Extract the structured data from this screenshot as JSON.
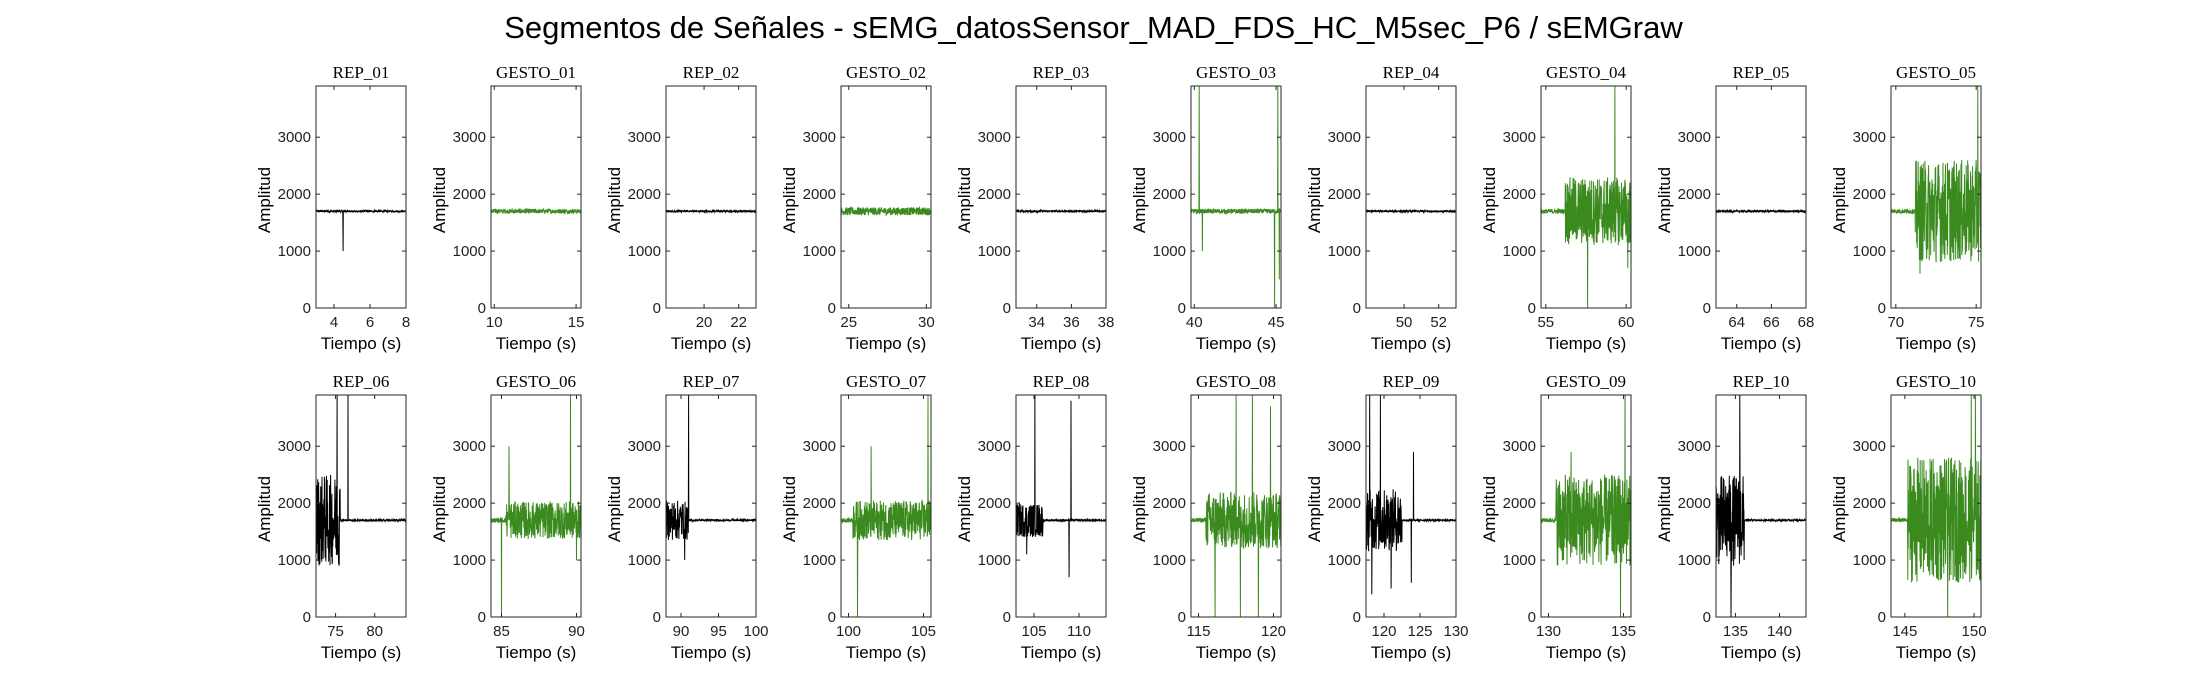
{
  "title": "Segmentos de Señales - sEMG_datosSensor_MAD_FDS_HC_M5sec_P6 / sEMGraw",
  "colors": {
    "rep": "#000000",
    "gesto": "#3a8a1e"
  },
  "chart_data": [
    {
      "type": "line",
      "title": "REP_01",
      "xlabel": "Tiempo (s)",
      "ylabel": "Amplitud",
      "xlim": [
        3,
        8
      ],
      "ylim": [
        0,
        3900
      ],
      "xticks": [
        4,
        6,
        8
      ],
      "yticks": [
        0,
        1000,
        2000,
        3000
      ],
      "series": [
        {
          "kind": "rep",
          "baseline": 1700,
          "noise": 15,
          "spikes": [
            [
              4.5,
              1000
            ]
          ]
        }
      ]
    },
    {
      "type": "line",
      "title": "GESTO_01",
      "xlabel": "Tiempo (s)",
      "ylabel": "Amplitud",
      "xlim": [
        9.8,
        15.3
      ],
      "ylim": [
        0,
        3900
      ],
      "xticks": [
        10,
        15
      ],
      "yticks": [
        0,
        1000,
        2000,
        3000
      ],
      "series": [
        {
          "kind": "gesto",
          "baseline": 1700,
          "noise": 40,
          "spikes": []
        }
      ]
    },
    {
      "type": "line",
      "title": "REP_02",
      "xlabel": "Tiempo (s)",
      "ylabel": "Amplitud",
      "xlim": [
        17.8,
        23
      ],
      "ylim": [
        0,
        3900
      ],
      "xticks": [
        20,
        22
      ],
      "yticks": [
        0,
        1000,
        2000,
        3000
      ],
      "series": [
        {
          "kind": "rep",
          "baseline": 1700,
          "noise": 15,
          "spikes": []
        }
      ]
    },
    {
      "type": "line",
      "title": "GESTO_02",
      "xlabel": "Tiempo (s)",
      "ylabel": "Amplitud",
      "xlim": [
        24.5,
        30.3
      ],
      "ylim": [
        0,
        3900
      ],
      "xticks": [
        25,
        30
      ],
      "yticks": [
        0,
        1000,
        2000,
        3000
      ],
      "series": [
        {
          "kind": "gesto",
          "baseline": 1700,
          "noise": 70,
          "spikes": []
        }
      ]
    },
    {
      "type": "line",
      "title": "REP_03",
      "xlabel": "Tiempo (s)",
      "ylabel": "Amplitud",
      "xlim": [
        32.8,
        38
      ],
      "ylim": [
        0,
        3900
      ],
      "xticks": [
        34,
        36,
        38
      ],
      "yticks": [
        0,
        1000,
        2000,
        3000
      ],
      "series": [
        {
          "kind": "rep",
          "baseline": 1700,
          "noise": 15,
          "spikes": []
        }
      ]
    },
    {
      "type": "line",
      "title": "GESTO_03",
      "xlabel": "Tiempo (s)",
      "ylabel": "Amplitud",
      "xlim": [
        39.8,
        45.3
      ],
      "ylim": [
        0,
        3900
      ],
      "xticks": [
        40,
        45
      ],
      "yticks": [
        0,
        1000,
        2000,
        3000
      ],
      "series": [
        {
          "kind": "gesto",
          "baseline": 1700,
          "noise": 40,
          "spikes": [
            [
              40.3,
              3900
            ],
            [
              40.5,
              1000
            ],
            [
              44.9,
              0
            ],
            [
              45.1,
              3900
            ],
            [
              45.2,
              500
            ]
          ]
        }
      ]
    },
    {
      "type": "line",
      "title": "REP_04",
      "xlabel": "Tiempo (s)",
      "ylabel": "Amplitud",
      "xlim": [
        47.8,
        53
      ],
      "ylim": [
        0,
        3900
      ],
      "xticks": [
        50,
        52
      ],
      "yticks": [
        0,
        1000,
        2000,
        3000
      ],
      "series": [
        {
          "kind": "rep",
          "baseline": 1700,
          "noise": 15,
          "spikes": []
        }
      ]
    },
    {
      "type": "line",
      "title": "GESTO_04",
      "xlabel": "Tiempo (s)",
      "ylabel": "Amplitud",
      "xlim": [
        54.7,
        60.3
      ],
      "ylim": [
        0,
        3900
      ],
      "xticks": [
        55,
        60
      ],
      "yticks": [
        0,
        1000,
        2000,
        3000
      ],
      "series": [
        {
          "kind": "gesto",
          "baseline": 1700,
          "noise": 40,
          "burst": [
            56.2,
            60.3,
            600
          ],
          "spikes": [
            [
              57.6,
              0
            ],
            [
              59.3,
              3900
            ],
            [
              60.1,
              700
            ]
          ]
        }
      ]
    },
    {
      "type": "line",
      "title": "REP_05",
      "xlabel": "Tiempo (s)",
      "ylabel": "Amplitud",
      "xlim": [
        62.8,
        68
      ],
      "ylim": [
        0,
        3900
      ],
      "xticks": [
        64,
        66,
        68
      ],
      "yticks": [
        0,
        1000,
        2000,
        3000
      ],
      "series": [
        {
          "kind": "rep",
          "baseline": 1700,
          "noise": 15,
          "spikes": []
        }
      ]
    },
    {
      "type": "line",
      "title": "GESTO_05",
      "xlabel": "Tiempo (s)",
      "ylabel": "Amplitud",
      "xlim": [
        69.7,
        75.3
      ],
      "ylim": [
        0,
        3900
      ],
      "xticks": [
        70,
        75
      ],
      "yticks": [
        0,
        1000,
        2000,
        3000
      ],
      "series": [
        {
          "kind": "gesto",
          "baseline": 1700,
          "noise": 40,
          "burst": [
            71.2,
            75.3,
            900
          ],
          "spikes": [
            [
              71.5,
              600
            ],
            [
              75.1,
              3900
            ]
          ]
        }
      ]
    },
    {
      "type": "line",
      "title": "REP_06",
      "xlabel": "Tiempo (s)",
      "ylabel": "Amplitud",
      "xlim": [
        72.5,
        84
      ],
      "ylim": [
        0,
        3900
      ],
      "xticks": [
        75,
        80
      ],
      "yticks": [
        0,
        1000,
        2000,
        3000
      ],
      "series": [
        {
          "kind": "rep",
          "baseline": 1700,
          "noise": 15,
          "burst": [
            72.5,
            75.6,
            800
          ],
          "spikes": [
            [
              75.2,
              3900
            ],
            [
              76.6,
              3900
            ]
          ]
        }
      ]
    },
    {
      "type": "line",
      "title": "GESTO_06",
      "xlabel": "Tiempo (s)",
      "ylabel": "Amplitud",
      "xlim": [
        84.3,
        90.3
      ],
      "ylim": [
        0,
        3900
      ],
      "xticks": [
        85,
        90
      ],
      "yticks": [
        0,
        1000,
        2000,
        3000
      ],
      "series": [
        {
          "kind": "gesto",
          "baseline": 1700,
          "noise": 40,
          "burst": [
            85.3,
            90.3,
            330
          ],
          "spikes": [
            [
              85.0,
              0
            ],
            [
              85.5,
              3000
            ],
            [
              89.6,
              3900
            ],
            [
              90.0,
              1000
            ]
          ]
        }
      ]
    },
    {
      "type": "line",
      "title": "REP_07",
      "xlabel": "Tiempo (s)",
      "ylabel": "Amplitud",
      "xlim": [
        88,
        100
      ],
      "ylim": [
        0,
        3900
      ],
      "xticks": [
        90,
        95,
        100
      ],
      "yticks": [
        0,
        1000,
        2000,
        3000
      ],
      "series": [
        {
          "kind": "rep",
          "baseline": 1700,
          "noise": 15,
          "burst": [
            88,
            91,
            350
          ],
          "spikes": [
            [
              90.5,
              1000
            ],
            [
              91.0,
              3900
            ]
          ]
        }
      ]
    },
    {
      "type": "line",
      "title": "GESTO_07",
      "xlabel": "Tiempo (s)",
      "ylabel": "Amplitud",
      "xlim": [
        99.5,
        105.5
      ],
      "ylim": [
        0,
        3900
      ],
      "xticks": [
        100,
        105
      ],
      "yticks": [
        0,
        1000,
        2000,
        3000
      ],
      "series": [
        {
          "kind": "gesto",
          "baseline": 1700,
          "noise": 40,
          "burst": [
            100.3,
            105.5,
            350
          ],
          "spikes": [
            [
              100.6,
              0
            ],
            [
              101.5,
              3000
            ],
            [
              105.3,
              3900
            ]
          ]
        }
      ]
    },
    {
      "type": "line",
      "title": "REP_08",
      "xlabel": "Tiempo (s)",
      "ylabel": "Amplitud",
      "xlim": [
        103,
        113
      ],
      "ylim": [
        0,
        3900
      ],
      "xticks": [
        105,
        110
      ],
      "yticks": [
        0,
        1000,
        2000,
        3000
      ],
      "series": [
        {
          "kind": "rep",
          "baseline": 1700,
          "noise": 15,
          "burst": [
            103,
            106,
            300
          ],
          "spikes": [
            [
              104.2,
              1100
            ],
            [
              105.1,
              3900
            ],
            [
              108.9,
              700
            ],
            [
              109.1,
              3800
            ]
          ]
        }
      ]
    },
    {
      "type": "line",
      "title": "GESTO_08",
      "xlabel": "Tiempo (s)",
      "ylabel": "Amplitud",
      "xlim": [
        114.5,
        120.5
      ],
      "ylim": [
        0,
        3900
      ],
      "xticks": [
        115,
        120
      ],
      "yticks": [
        0,
        1000,
        2000,
        3000
      ],
      "series": [
        {
          "kind": "gesto",
          "baseline": 1700,
          "noise": 40,
          "burst": [
            115.5,
            120.5,
            500
          ],
          "spikes": [
            [
              116.1,
              0
            ],
            [
              117.5,
              3900
            ],
            [
              117.8,
              0
            ],
            [
              118.6,
              3900
            ],
            [
              119.0,
              0
            ],
            [
              119.8,
              3700
            ]
          ]
        }
      ]
    },
    {
      "type": "line",
      "title": "REP_09",
      "xlabel": "Tiempo (s)",
      "ylabel": "Amplitud",
      "xlim": [
        117.5,
        130
      ],
      "ylim": [
        0,
        3900
      ],
      "xticks": [
        120,
        125,
        130
      ],
      "yticks": [
        0,
        1000,
        2000,
        3000
      ],
      "series": [
        {
          "kind": "rep",
          "baseline": 1700,
          "noise": 15,
          "burst": [
            117.5,
            122.5,
            550
          ],
          "spikes": [
            [
              118.0,
              3900
            ],
            [
              118.3,
              400
            ],
            [
              119.5,
              3900
            ],
            [
              121.0,
              500
            ],
            [
              123.8,
              600
            ],
            [
              124.1,
              2900
            ]
          ]
        }
      ]
    },
    {
      "type": "line",
      "title": "GESTO_09",
      "xlabel": "Tiempo (s)",
      "ylabel": "Amplitud",
      "xlim": [
        129.5,
        135.5
      ],
      "ylim": [
        0,
        3900
      ],
      "xticks": [
        130,
        135
      ],
      "yticks": [
        0,
        1000,
        2000,
        3000
      ],
      "series": [
        {
          "kind": "gesto",
          "baseline": 1700,
          "noise": 40,
          "burst": [
            130.5,
            135.5,
            800
          ],
          "spikes": [
            [
              131.5,
              2900
            ],
            [
              134.8,
              0
            ],
            [
              135.1,
              3900
            ]
          ]
        }
      ]
    },
    {
      "type": "line",
      "title": "REP_10",
      "xlabel": "Tiempo (s)",
      "ylabel": "Amplitud",
      "xlim": [
        132.8,
        143
      ],
      "ylim": [
        0,
        3900
      ],
      "xticks": [
        135,
        140
      ],
      "yticks": [
        0,
        1000,
        2000,
        3000
      ],
      "series": [
        {
          "kind": "rep",
          "baseline": 1700,
          "noise": 15,
          "burst": [
            132.8,
            136,
            800
          ],
          "spikes": [
            [
              134.5,
              0
            ],
            [
              135.5,
              3900
            ]
          ]
        }
      ]
    },
    {
      "type": "line",
      "title": "GESTO_10",
      "xlabel": "Tiempo (s)",
      "ylabel": "Amplitud",
      "xlim": [
        144,
        150.5
      ],
      "ylim": [
        0,
        3900
      ],
      "xticks": [
        145,
        150
      ],
      "yticks": [
        0,
        1000,
        2000,
        3000
      ],
      "series": [
        {
          "kind": "gesto",
          "baseline": 1700,
          "noise": 40,
          "burst": [
            145.2,
            150.5,
            1100
          ],
          "spikes": [
            [
              148.1,
              0
            ],
            [
              149.8,
              3900
            ],
            [
              150.1,
              3900
            ]
          ]
        }
      ]
    }
  ]
}
